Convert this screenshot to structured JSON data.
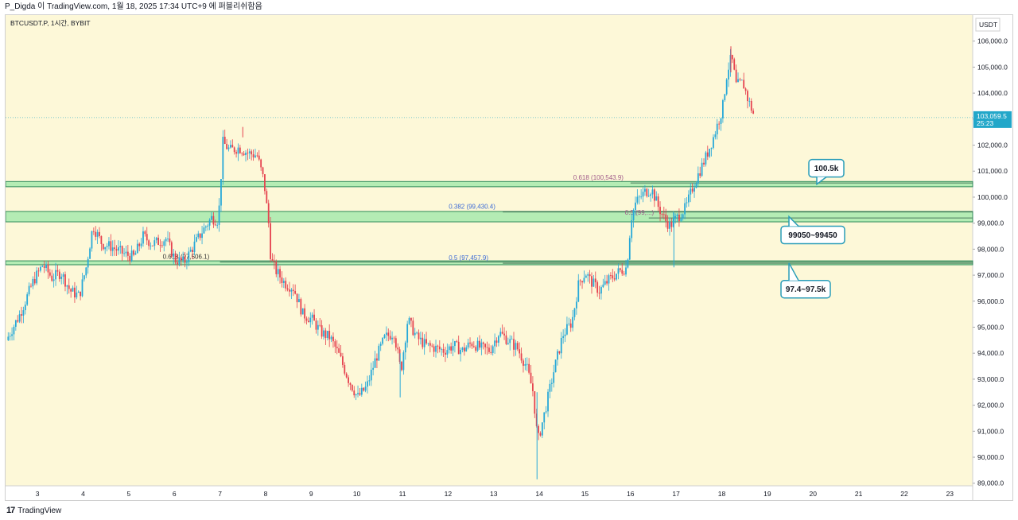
{
  "header": {
    "text": "P_Digda 이 TradingView.com, 1월 18, 2025 17:34 UTC+9 에 퍼블리쉬함음"
  },
  "symbol": {
    "label": "BTCUSDT.P, 1시간, BYBIT"
  },
  "currency": {
    "label": "USDT"
  },
  "last_price": {
    "price": "103,059.5",
    "countdown": "25:23",
    "value": 103059.5
  },
  "footer": {
    "logo": "17",
    "brand": "TradingView"
  },
  "colors": {
    "background": "#fdf8d8",
    "up": "#26a8d8",
    "down": "#e5424f",
    "zone_fill": "#b4ecb4",
    "zone_border": "#2f8a5a",
    "fib_label": "#3d6bd6",
    "fib_label_alt": "#a05a8a",
    "price_badge": "#22a7c9"
  },
  "chart_data": {
    "type": "candlestick",
    "title": "",
    "y_axis": {
      "range": [
        88900,
        107000
      ],
      "ticks": [
        "89,000.0",
        "90,000.0",
        "91,000.0",
        "92,000.0",
        "93,000.0",
        "94,000.0",
        "95,000.0",
        "96,000.0",
        "97,000.0",
        "98,000.0",
        "99,000.0",
        "100,000.0",
        "101,000.0",
        "102,000.0",
        "103,000.0",
        "104,000.0",
        "105,000.0",
        "106,000.0"
      ],
      "tick_values": [
        89000,
        90000,
        91000,
        92000,
        93000,
        94000,
        95000,
        96000,
        97000,
        98000,
        99000,
        100000,
        101000,
        102000,
        103000,
        104000,
        105000,
        106000
      ]
    },
    "x_axis": {
      "ticks": [
        "3",
        "4",
        "5",
        "6",
        "7",
        "8",
        "9",
        "10",
        "11",
        "12",
        "13",
        "14",
        "15",
        "16",
        "17",
        "18",
        "19",
        "20",
        "21",
        "22",
        "23"
      ],
      "tick_values": [
        3,
        4,
        5,
        6,
        7,
        8,
        9,
        10,
        11,
        12,
        13,
        14,
        15,
        16,
        17,
        18,
        19,
        20,
        21,
        22,
        23
      ],
      "range": [
        2.3,
        23.5
      ]
    },
    "price_path": [
      [
        2.3,
        94500
      ],
      [
        2.6,
        95500
      ],
      [
        2.9,
        96800
      ],
      [
        3.1,
        97400
      ],
      [
        3.3,
        96900
      ],
      [
        3.5,
        97100
      ],
      [
        3.7,
        96400
      ],
      [
        3.9,
        96200
      ],
      [
        4.05,
        97300
      ],
      [
        4.2,
        98900
      ],
      [
        4.4,
        98200
      ],
      [
        4.6,
        98100
      ],
      [
        4.9,
        97800
      ],
      [
        5.1,
        97700
      ],
      [
        5.3,
        98500
      ],
      [
        5.5,
        98200
      ],
      [
        5.8,
        98400
      ],
      [
        6.0,
        97600
      ],
      [
        6.2,
        97500
      ],
      [
        6.4,
        98100
      ],
      [
        6.6,
        98700
      ],
      [
        6.8,
        99200
      ],
      [
        6.95,
        99100
      ],
      [
        7.05,
        102100
      ],
      [
        7.2,
        101800
      ],
      [
        7.4,
        101900
      ],
      [
        7.6,
        101700
      ],
      [
        7.8,
        101600
      ],
      [
        7.95,
        100600
      ],
      [
        8.05,
        99000
      ],
      [
        8.1,
        97600
      ],
      [
        8.2,
        97200
      ],
      [
        8.4,
        96700
      ],
      [
        8.6,
        96500
      ],
      [
        8.8,
        95500
      ],
      [
        9.0,
        95300
      ],
      [
        9.2,
        94800
      ],
      [
        9.4,
        94600
      ],
      [
        9.6,
        93900
      ],
      [
        9.8,
        93000
      ],
      [
        10.0,
        92300
      ],
      [
        10.2,
        92700
      ],
      [
        10.4,
        93800
      ],
      [
        10.6,
        94600
      ],
      [
        10.8,
        94800
      ],
      [
        10.95,
        93300
      ],
      [
        11.1,
        95300
      ],
      [
        11.3,
        94600
      ],
      [
        11.5,
        94300
      ],
      [
        11.7,
        94200
      ],
      [
        11.9,
        94100
      ],
      [
        12.1,
        94300
      ],
      [
        12.3,
        94100
      ],
      [
        12.5,
        94400
      ],
      [
        12.7,
        94200
      ],
      [
        12.9,
        94100
      ],
      [
        13.1,
        94800
      ],
      [
        13.3,
        94500
      ],
      [
        13.5,
        94200
      ],
      [
        13.7,
        93500
      ],
      [
        13.85,
        92500
      ],
      [
        13.95,
        90600
      ],
      [
        14.1,
        91700
      ],
      [
        14.3,
        93300
      ],
      [
        14.5,
        94700
      ],
      [
        14.7,
        95200
      ],
      [
        14.85,
        96700
      ],
      [
        15.0,
        97100
      ],
      [
        15.1,
        96800
      ],
      [
        15.3,
        96400
      ],
      [
        15.5,
        96800
      ],
      [
        15.7,
        97100
      ],
      [
        15.9,
        97300
      ],
      [
        16.0,
        99200
      ],
      [
        16.1,
        99800
      ],
      [
        16.3,
        100200
      ],
      [
        16.45,
        100300
      ],
      [
        16.6,
        99600
      ],
      [
        16.75,
        99100
      ],
      [
        16.85,
        98900
      ],
      [
        16.95,
        99100
      ],
      [
        17.05,
        99300
      ],
      [
        17.2,
        99600
      ],
      [
        17.35,
        100400
      ],
      [
        17.5,
        101000
      ],
      [
        17.65,
        101600
      ],
      [
        17.8,
        102300
      ],
      [
        18.0,
        103400
      ],
      [
        18.1,
        104800
      ],
      [
        18.2,
        105400
      ],
      [
        18.3,
        104300
      ],
      [
        18.45,
        104400
      ],
      [
        18.55,
        103800
      ],
      [
        18.7,
        103100
      ]
    ],
    "zones": [
      {
        "low": 100400,
        "high": 100600
      },
      {
        "low": 99050,
        "high": 99450
      },
      {
        "low": 97400,
        "high": 97550
      }
    ],
    "fib_levels": [
      {
        "label": "0.618 (100,543.9)",
        "value": 100543.9,
        "x_start": 16.0
      },
      {
        "label": "0.382 (99,430.4)",
        "value": 99430.4,
        "x_start": 13.2
      },
      {
        "label": "0.5 (97,457.9)",
        "value": 97457.9,
        "x_start": 13.2
      },
      {
        "label": "0.618 (97,506.1)",
        "value": 97506.1,
        "x_start": 7.0
      },
      {
        "label": "0.5 (99,...)",
        "value": 99200,
        "x_start": 16.4
      }
    ],
    "callouts": [
      {
        "label": "100.5k",
        "value": 100500
      },
      {
        "label": "99050~99450",
        "value": 99250
      },
      {
        "label": "97.4~97.5k",
        "value": 97470
      }
    ]
  }
}
